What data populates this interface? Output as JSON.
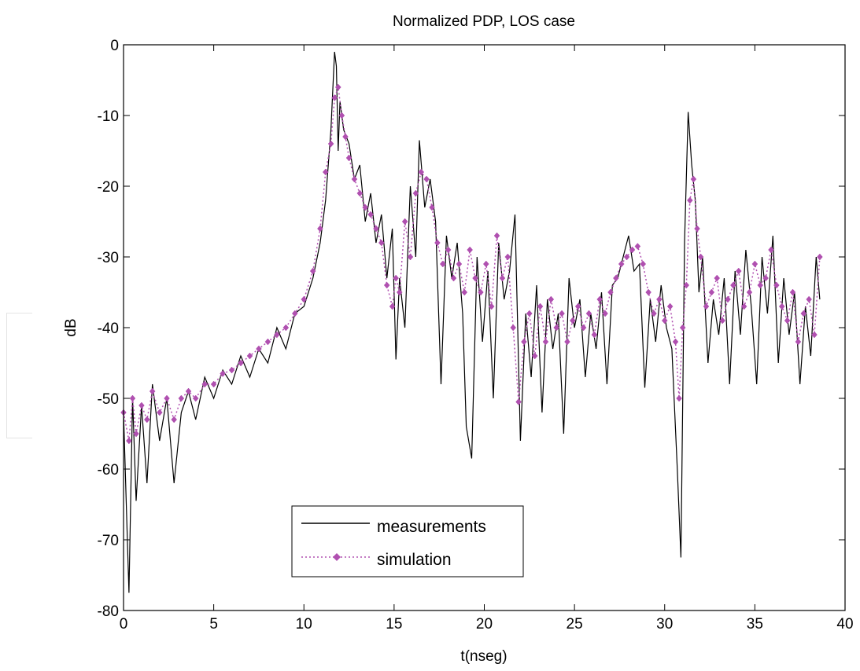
{
  "chart_data": {
    "type": "line",
    "title": "Normalized PDP, LOS case",
    "xlabel": "t(nseg)",
    "ylabel": "dB",
    "xlim": [
      0,
      40
    ],
    "ylim": [
      -80,
      0
    ],
    "xticks": [
      0,
      5,
      10,
      15,
      20,
      25,
      30,
      35,
      40
    ],
    "yticks": [
      0,
      -10,
      -20,
      -30,
      -40,
      -50,
      -60,
      -70,
      -80
    ],
    "xtick_labels": [
      "0",
      "5",
      "10",
      "15",
      "20",
      "25",
      "30",
      "35",
      "40"
    ],
    "ytick_labels": [
      "0",
      "-10",
      "-20",
      "-30",
      "-40",
      "-50",
      "-60",
      "-70",
      "-80"
    ],
    "grid": false,
    "legend_position": "bottom-center",
    "series": [
      {
        "name": "measurements",
        "style": "solid",
        "color": "#000000",
        "x": [
          0.0,
          0.3,
          0.5,
          0.7,
          1.0,
          1.3,
          1.6,
          2.0,
          2.4,
          2.8,
          3.2,
          3.6,
          4.0,
          4.5,
          5.0,
          5.5,
          6.0,
          6.5,
          7.0,
          7.5,
          8.0,
          8.5,
          9.0,
          9.5,
          10.0,
          10.5,
          10.9,
          11.2,
          11.5,
          11.7,
          11.8,
          11.9,
          12.0,
          12.2,
          12.5,
          12.8,
          13.1,
          13.4,
          13.7,
          14.0,
          14.3,
          14.6,
          14.9,
          15.1,
          15.3,
          15.6,
          15.9,
          16.2,
          16.4,
          16.7,
          17.0,
          17.3,
          17.6,
          17.9,
          18.2,
          18.5,
          18.8,
          19.0,
          19.3,
          19.6,
          19.9,
          20.2,
          20.5,
          20.8,
          21.1,
          21.4,
          21.7,
          22.0,
          22.3,
          22.6,
          22.9,
          23.2,
          23.5,
          23.8,
          24.1,
          24.4,
          24.7,
          25.0,
          25.3,
          25.6,
          25.9,
          26.2,
          26.5,
          26.8,
          27.1,
          27.4,
          27.7,
          28.0,
          28.3,
          28.6,
          28.9,
          29.2,
          29.5,
          29.8,
          30.1,
          30.4,
          30.7,
          30.9,
          31.1,
          31.3,
          31.5,
          31.7,
          31.9,
          32.1,
          32.4,
          32.7,
          33.0,
          33.3,
          33.6,
          33.9,
          34.2,
          34.5,
          34.8,
          35.1,
          35.4,
          35.7,
          36.0,
          36.3,
          36.6,
          36.9,
          37.2,
          37.5,
          37.8,
          38.1,
          38.4,
          38.6
        ],
        "y": [
          -52.0,
          -77.5,
          -50.0,
          -64.5,
          -51.0,
          -62.0,
          -48.0,
          -56.0,
          -50.0,
          -62.0,
          -52.0,
          -49.0,
          -53.0,
          -47.0,
          -50.0,
          -46.0,
          -48.0,
          -44.0,
          -47.0,
          -43.0,
          -45.0,
          -40.0,
          -43.0,
          -38.0,
          -37.0,
          -33.0,
          -28.0,
          -22.0,
          -12.0,
          -1.0,
          -3.0,
          -15.0,
          -8.0,
          -12.0,
          -14.0,
          -19.0,
          -17.0,
          -25.0,
          -21.0,
          -28.0,
          -24.0,
          -33.0,
          -26.0,
          -44.5,
          -33.0,
          -40.0,
          -20.0,
          -30.0,
          -13.5,
          -23.0,
          -19.0,
          -25.0,
          -48.0,
          -27.0,
          -33.0,
          -28.0,
          -38.0,
          -54.0,
          -58.5,
          -30.0,
          -42.0,
          -32.0,
          -50.0,
          -28.0,
          -36.0,
          -32.0,
          -24.0,
          -56.0,
          -38.0,
          -47.0,
          -34.0,
          -52.0,
          -36.0,
          -43.0,
          -38.0,
          -55.0,
          -33.0,
          -40.0,
          -36.0,
          -47.0,
          -38.0,
          -43.0,
          -35.0,
          -48.0,
          -34.0,
          -33.0,
          -30.0,
          -27.0,
          -32.0,
          -31.0,
          -48.5,
          -36.0,
          -42.0,
          -34.0,
          -40.0,
          -43.0,
          -60.0,
          -72.5,
          -28.0,
          -9.5,
          -17.0,
          -22.0,
          -35.0,
          -30.0,
          -45.0,
          -36.0,
          -41.0,
          -33.0,
          -48.0,
          -32.0,
          -41.0,
          -29.0,
          -37.0,
          -48.0,
          -30.0,
          -38.0,
          -27.0,
          -45.0,
          -33.0,
          -41.0,
          -35.0,
          -48.0,
          -37.0,
          -44.0,
          -30.0,
          -36.0
        ]
      },
      {
        "name": "simulation",
        "style": "dotted-diamond",
        "color": "#b050b0",
        "x": [
          0.0,
          0.3,
          0.5,
          0.7,
          1.0,
          1.3,
          1.6,
          2.0,
          2.4,
          2.8,
          3.2,
          3.6,
          4.0,
          4.5,
          5.0,
          5.5,
          6.0,
          6.5,
          7.0,
          7.5,
          8.0,
          8.5,
          9.0,
          9.5,
          10.0,
          10.5,
          10.9,
          11.2,
          11.5,
          11.7,
          11.9,
          12.1,
          12.3,
          12.5,
          12.8,
          13.1,
          13.4,
          13.7,
          14.0,
          14.3,
          14.6,
          14.9,
          15.1,
          15.3,
          15.6,
          15.9,
          16.2,
          16.5,
          16.8,
          17.1,
          17.4,
          17.7,
          18.0,
          18.3,
          18.6,
          18.9,
          19.2,
          19.5,
          19.8,
          20.1,
          20.4,
          20.7,
          21.0,
          21.3,
          21.6,
          21.9,
          22.2,
          22.5,
          22.8,
          23.1,
          23.4,
          23.7,
          24.0,
          24.3,
          24.6,
          24.9,
          25.2,
          25.5,
          25.8,
          26.1,
          26.4,
          26.7,
          27.0,
          27.3,
          27.6,
          27.9,
          28.2,
          28.5,
          28.8,
          29.1,
          29.4,
          29.7,
          30.0,
          30.3,
          30.6,
          30.8,
          31.0,
          31.2,
          31.4,
          31.6,
          31.8,
          32.0,
          32.3,
          32.6,
          32.9,
          33.2,
          33.5,
          33.8,
          34.1,
          34.4,
          34.7,
          35.0,
          35.3,
          35.6,
          35.9,
          36.2,
          36.5,
          36.8,
          37.1,
          37.4,
          37.7,
          38.0,
          38.3,
          38.6
        ],
        "y": [
          -52.0,
          -56.0,
          -50.0,
          -55.0,
          -51.0,
          -53.0,
          -49.0,
          -52.0,
          -50.0,
          -53.0,
          -50.0,
          -49.0,
          -50.0,
          -48.0,
          -48.0,
          -46.5,
          -46.0,
          -45.0,
          -44.0,
          -43.0,
          -42.0,
          -41.0,
          -40.0,
          -38.0,
          -36.0,
          -32.0,
          -26.0,
          -18.0,
          -14.0,
          -7.5,
          -6.0,
          -10.0,
          -13.0,
          -16.0,
          -19.0,
          -21.0,
          -23.0,
          -24.0,
          -26.0,
          -28.0,
          -34.0,
          -37.0,
          -33.0,
          -35.0,
          -25.0,
          -30.0,
          -21.0,
          -18.0,
          -19.0,
          -23.0,
          -28.0,
          -31.0,
          -29.0,
          -33.0,
          -31.0,
          -35.0,
          -29.0,
          -33.0,
          -35.0,
          -31.0,
          -37.0,
          -27.0,
          -33.0,
          -30.0,
          -40.0,
          -50.5,
          -42.0,
          -38.0,
          -44.0,
          -37.0,
          -42.0,
          -36.0,
          -40.0,
          -38.0,
          -42.0,
          -39.0,
          -37.0,
          -40.0,
          -38.0,
          -41.0,
          -36.0,
          -38.0,
          -35.0,
          -33.0,
          -31.0,
          -30.0,
          -29.0,
          -28.5,
          -31.0,
          -35.0,
          -38.0,
          -36.0,
          -39.0,
          -37.0,
          -42.0,
          -50.0,
          -40.0,
          -34.0,
          -22.0,
          -19.0,
          -26.0,
          -30.0,
          -37.0,
          -35.0,
          -33.0,
          -39.0,
          -36.0,
          -34.0,
          -32.0,
          -37.0,
          -35.0,
          -31.0,
          -34.0,
          -33.0,
          -29.0,
          -34.0,
          -37.0,
          -39.0,
          -35.0,
          -42.0,
          -38.0,
          -36.0,
          -41.0,
          -30.0
        ]
      }
    ]
  }
}
